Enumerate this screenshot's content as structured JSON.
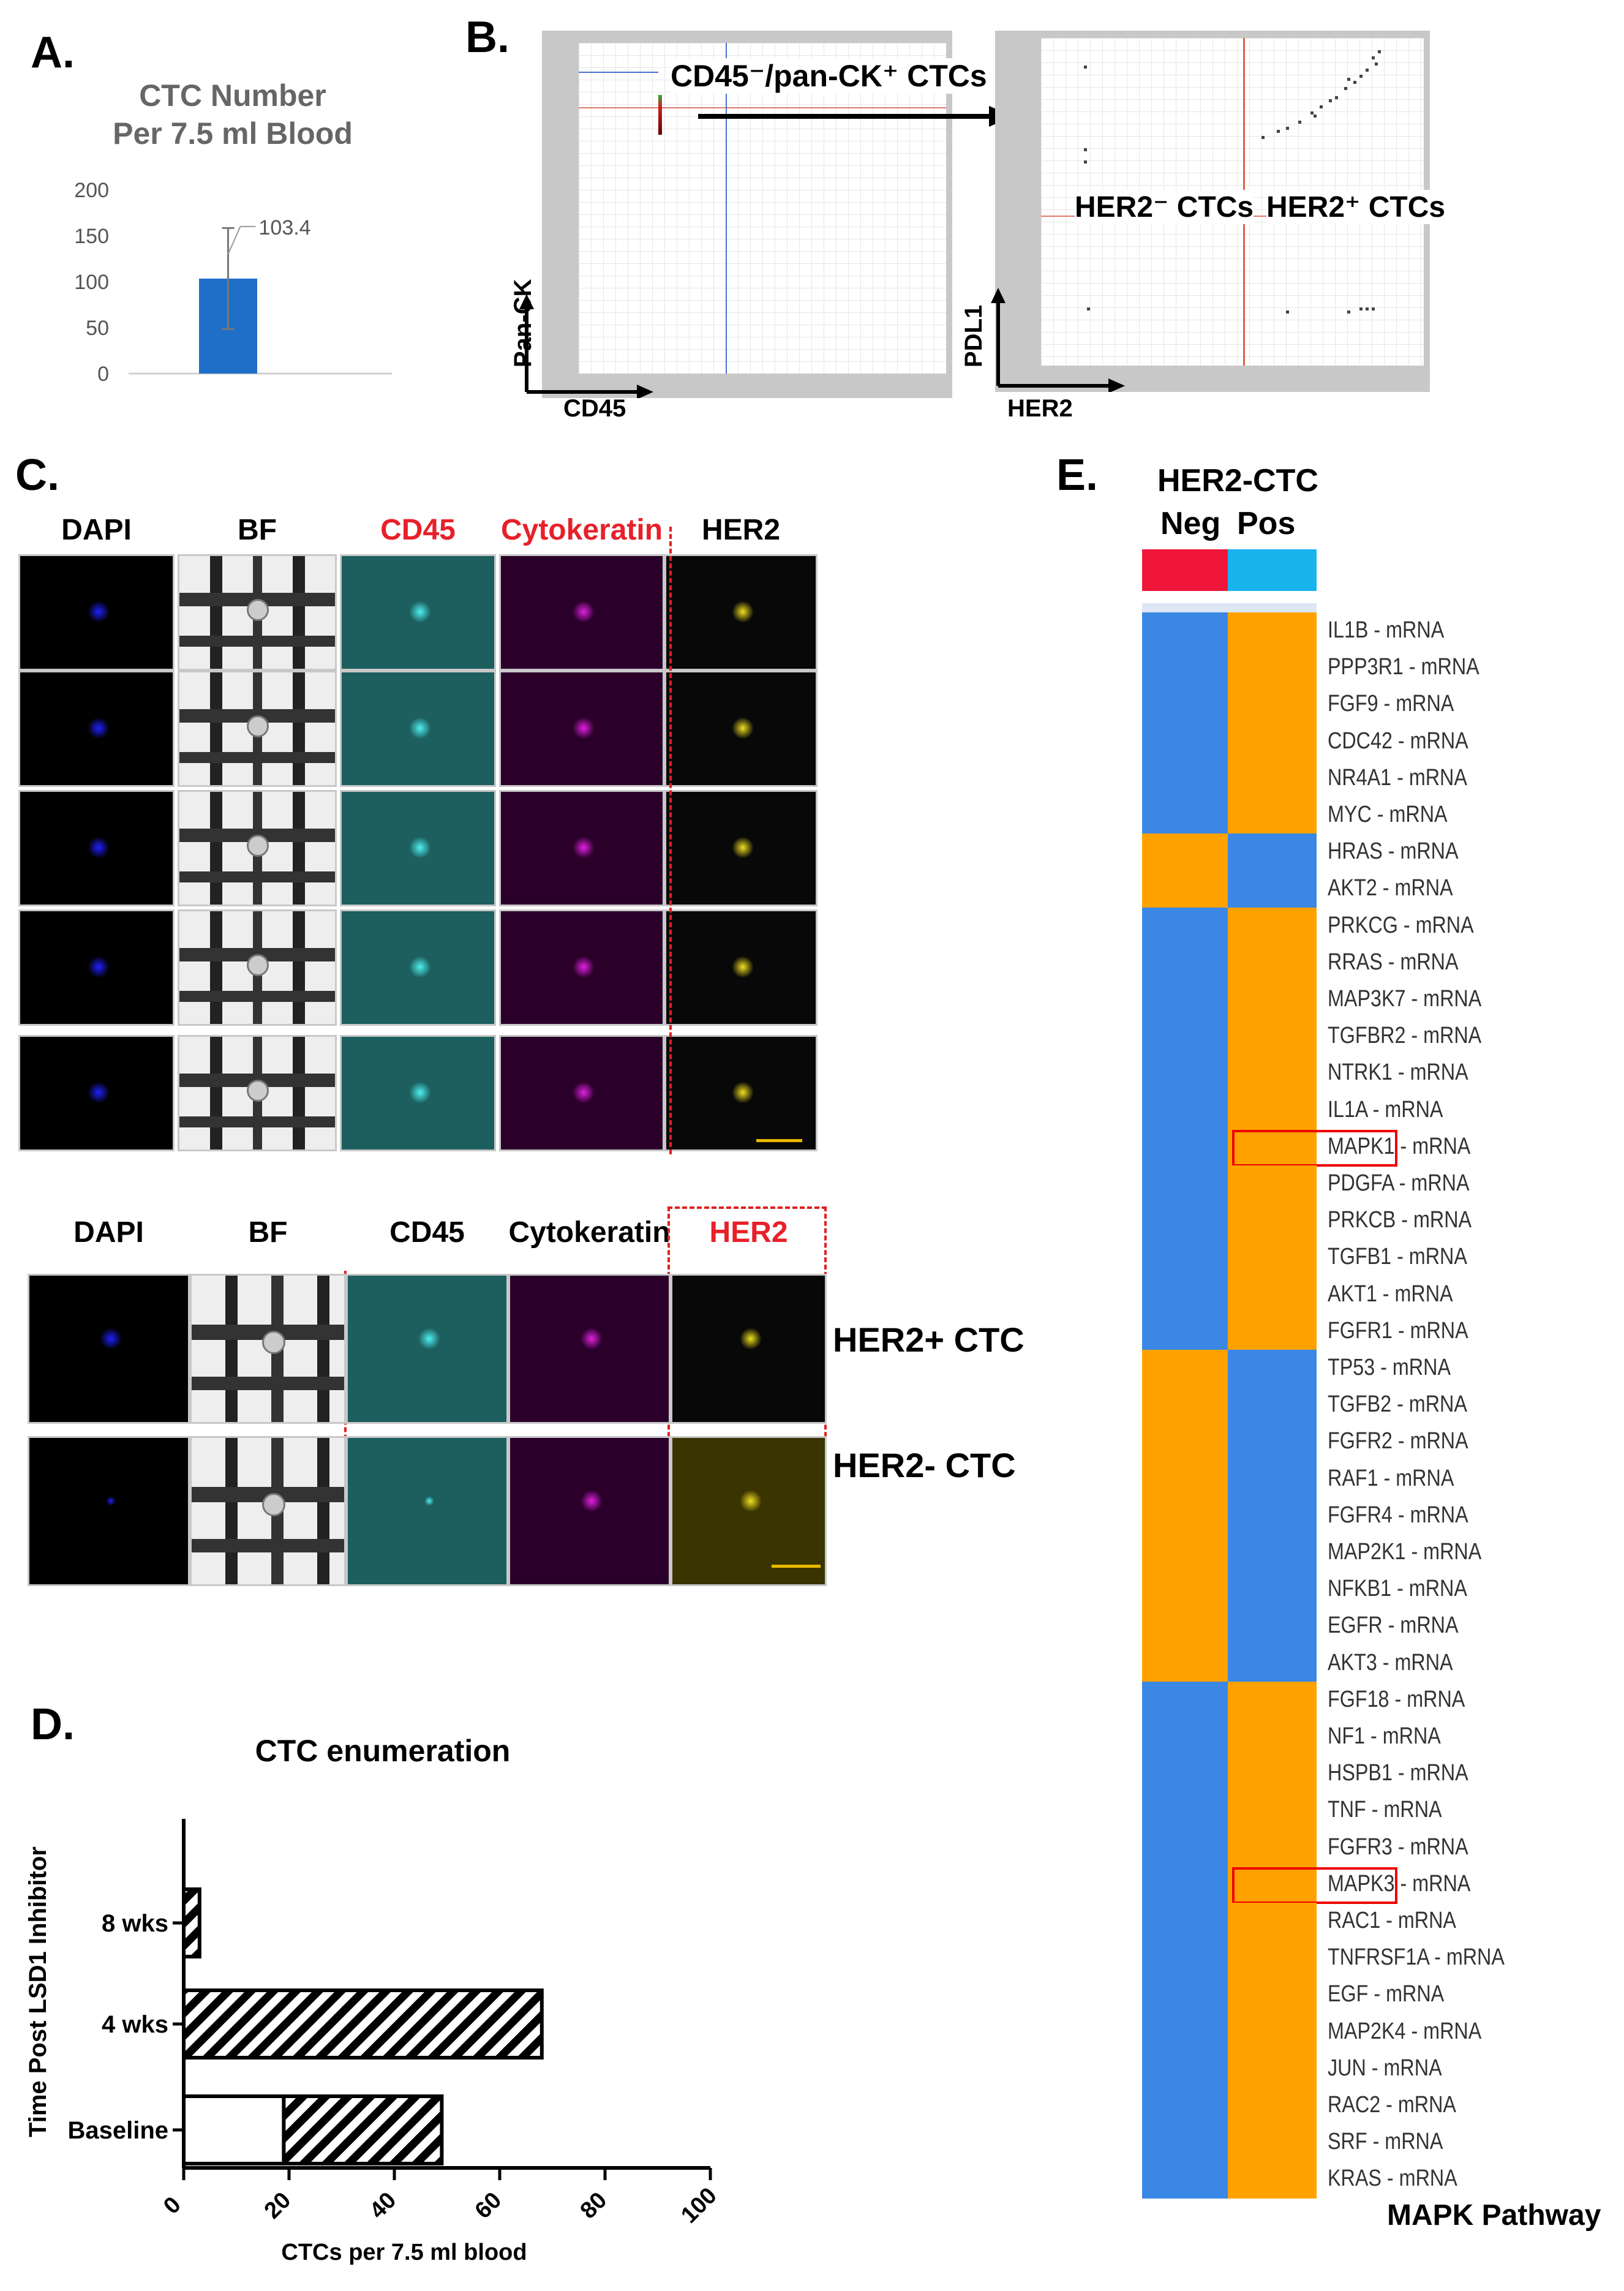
{
  "panels": {
    "a": "A.",
    "b": "B.",
    "c": "C.",
    "d": "D.",
    "e": "E."
  },
  "panel_a": {
    "chart_data": {
      "type": "bar",
      "title": "CTC Number\nPer 7.5 ml Blood",
      "title_line1": "CTC Number",
      "title_line2": "Per 7.5 ml Blood",
      "categories": [
        ""
      ],
      "values": [
        103.4
      ],
      "error": 55,
      "data_label": "103.4",
      "yticks": [
        "0",
        "50",
        "100",
        "150",
        "200"
      ],
      "ylim": [
        0,
        200
      ],
      "bar_color": "#1f6fc8"
    }
  },
  "panel_b": {
    "label_gate": "CD45⁻/pan-CK⁺ CTCs",
    "left_y": "Pan-CK",
    "left_x": "CD45",
    "right_y": "PDL1",
    "right_x": "HER2",
    "her2_neg": "HER2⁻ CTCs",
    "her2_pos": "HER2⁺ CTCs"
  },
  "panel_c": {
    "top_headers": [
      "DAPI",
      "BF",
      "CD45",
      "Cytokeratin",
      "HER2"
    ],
    "bottom_headers": [
      "DAPI",
      "BF",
      "CD45",
      "Cytokeratin",
      "HER2"
    ],
    "row_labels": [
      "HER2+ CTC",
      "HER2- CTC"
    ],
    "colors": {
      "red": "#e8202a",
      "magenta": "#e020e0",
      "cyan": "#4ff0f0",
      "yellow": "#f0e020",
      "blue": "#2020ff"
    }
  },
  "panel_d": {
    "chart_data": {
      "type": "bar",
      "orientation": "horizontal",
      "stacked": true,
      "title": "CTC enumeration",
      "xlabel": "CTCs per 7.5 ml blood",
      "ylabel": "Time Post LSD1 Inhibitor",
      "categories": [
        "8 wks",
        "4 wks",
        "Baseline"
      ],
      "series": [
        {
          "name": "HER2- CTC",
          "values": [
            0,
            0,
            19
          ]
        },
        {
          "name": "HER2+ CTC",
          "values": [
            3,
            68,
            30
          ]
        }
      ],
      "xticks": [
        "0",
        "20",
        "40",
        "60",
        "80",
        "100"
      ],
      "xlim": [
        0,
        100
      ],
      "legend": "right"
    }
  },
  "panel_e": {
    "header": "HER2-CTC",
    "col_neg": "Neg",
    "col_pos": "Pos",
    "footer": "MAPK Pathway",
    "colors": {
      "neg": "#f0163a",
      "pos": "#17b4ee",
      "blue": "#3a87e6",
      "orange": "#ffa200"
    },
    "chart_data": {
      "type": "heatmap",
      "columns": [
        "Neg",
        "Pos"
      ],
      "rows": [
        "IL1B - mRNA",
        "PPP3R1 - mRNA",
        "FGF9 - mRNA",
        "CDC42 - mRNA",
        "NR4A1 - mRNA",
        "MYC - mRNA",
        "HRAS - mRNA",
        "AKT2 - mRNA",
        "PRKCG - mRNA",
        "RRAS - mRNA",
        "MAP3K7 - mRNA",
        "TGFBR2 - mRNA",
        "NTRK1 - mRNA",
        "IL1A - mRNA",
        "MAPK1 - mRNA",
        "PDGFA - mRNA",
        "PRKCB - mRNA",
        "TGFB1 - mRNA",
        "AKT1 - mRNA",
        "FGFR1 - mRNA",
        "TP53 - mRNA",
        "TGFB2 - mRNA",
        "FGFR2 - mRNA",
        "RAF1 - mRNA",
        "FGFR4 - mRNA",
        "MAP2K1 - mRNA",
        "NFKB1 - mRNA",
        "EGFR - mRNA",
        "AKT3 - mRNA",
        "FGF18 - mRNA",
        "NF1 - mRNA",
        "HSPB1 - mRNA",
        "TNF - mRNA",
        "FGFR3 - mRNA",
        "MAPK3 - mRNA",
        "RAC1 - mRNA",
        "TNFRSF1A - mRNA",
        "EGF - mRNA",
        "MAP2K4 - mRNA",
        "JUN - mRNA",
        "RAC2 - mRNA",
        "SRF - mRNA",
        "KRAS - mRNA"
      ],
      "neg_high": [
        0,
        0,
        0,
        0,
        0,
        0,
        1,
        1,
        0,
        0,
        0,
        0,
        0,
        0,
        0,
        0,
        0,
        0,
        0,
        0,
        1,
        1,
        1,
        1,
        1,
        1,
        1,
        1,
        1,
        0,
        0,
        0,
        0,
        0,
        0,
        0,
        0,
        0,
        0,
        0,
        0,
        0,
        0
      ],
      "highlighted": [
        "MAPK1 - mRNA",
        "MAPK3 - mRNA"
      ]
    }
  }
}
